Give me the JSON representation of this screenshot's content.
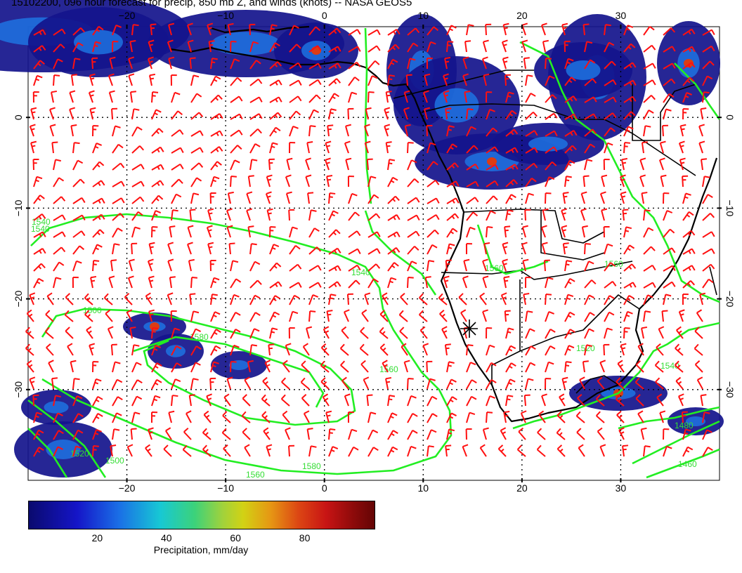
{
  "title": "15102200, 096 hour forecast for precip, 850 mb Z, and winds (knots) -- NASA GEOS5",
  "map": {
    "lon_ticks": [
      "−20",
      "−10",
      "0",
      "10",
      "20",
      "30"
    ],
    "lat_ticks": [
      "0",
      "−10",
      "−20",
      "−30"
    ],
    "lon_values": [
      -20,
      -10,
      0,
      10,
      20,
      30
    ],
    "lat_values": [
      0,
      -10,
      -20,
      -30
    ],
    "extent": {
      "lon": [
        -30,
        40
      ],
      "lat": [
        -40,
        10
      ]
    },
    "contour_labels": [
      "1500",
      "1540",
      "1560",
      "1580",
      "1520",
      "1500",
      "1480",
      "1460",
      "1540",
      "1560",
      "1580",
      "1560",
      "1540",
      "1520",
      "1560",
      "1540"
    ],
    "colors": {
      "contour": "#22ee22",
      "barb": "#ff1010",
      "coast": "#000000",
      "grid": "#000000"
    }
  },
  "colorbar": {
    "ticks": [
      "20",
      "40",
      "60",
      "80"
    ],
    "tick_values": [
      20,
      40,
      60,
      80
    ],
    "range": [
      0,
      100
    ],
    "label": "Precipitation, mm/day"
  }
}
